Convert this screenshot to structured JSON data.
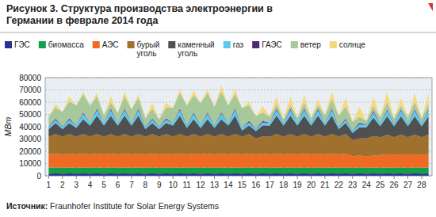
{
  "chart_data": {
    "type": "area",
    "stacked": true,
    "grid": true,
    "legend": "top",
    "title": "Рисунок 3. Структура производства электроэнергии в Германии в феврале 2014 года",
    "y_label": "МВт",
    "source": "Источник: Fraunhofer Institute for Solar Energy Systems",
    "xlim": [
      0.75,
      28.75
    ],
    "xticks": [
      1,
      2,
      3,
      4,
      5,
      6,
      7,
      8,
      9,
      10,
      11,
      12,
      13,
      14,
      15,
      16,
      17,
      18,
      19,
      20,
      21,
      22,
      23,
      24,
      25,
      26,
      27,
      28
    ],
    "ylim": [
      0,
      80000
    ],
    "yticks": [
      0,
      10000,
      20000,
      30000,
      40000,
      50000,
      60000,
      70000,
      80000
    ],
    "x": [
      1,
      1.5,
      2,
      2.5,
      3,
      3.5,
      4,
      4.5,
      5,
      5.5,
      6,
      6.5,
      7,
      7.5,
      8,
      8.5,
      9,
      9.5,
      10,
      10.5,
      11,
      11.5,
      12,
      12.5,
      13,
      13.5,
      14,
      14.5,
      15,
      15.5,
      16,
      16.5,
      17,
      17.5,
      18,
      18.5,
      19,
      19.5,
      20,
      20.5,
      21,
      21.5,
      22,
      22.5,
      23,
      23.5,
      24,
      24.5,
      25,
      25.5,
      26,
      26.5,
      27,
      27.5,
      28,
      28.5
    ],
    "series": [
      {
        "name": "ГЭС",
        "color": "#2e3192",
        "values": [
          1700,
          1900,
          1700,
          1900,
          1700,
          1900,
          1700,
          1900,
          1700,
          1900,
          1700,
          1900,
          1700,
          1900,
          1700,
          1900,
          1700,
          1900,
          1700,
          1900,
          1700,
          1900,
          1700,
          1900,
          1700,
          1900,
          1700,
          1900,
          1700,
          1900,
          1700,
          1900,
          1700,
          1900,
          1700,
          1900,
          1700,
          1900,
          1700,
          1900,
          1700,
          1900,
          1700,
          1900,
          1700,
          1900,
          1700,
          1900,
          1700,
          1900,
          1700,
          1900,
          1700,
          1900,
          1700,
          1900
        ]
      },
      {
        "name": "биомасса",
        "color": "#12a04a",
        "values": [
          4800,
          5000,
          4800,
          5000,
          4800,
          5000,
          4800,
          5000,
          4800,
          5000,
          4800,
          5000,
          4800,
          5000,
          4800,
          5000,
          4800,
          5000,
          4800,
          5000,
          4800,
          5000,
          4800,
          5000,
          4800,
          5000,
          4800,
          5000,
          4800,
          5000,
          4800,
          5000,
          4800,
          5000,
          4800,
          5000,
          4800,
          5000,
          4800,
          5000,
          4800,
          5000,
          4800,
          5000,
          4800,
          5000,
          4800,
          5000,
          4800,
          5000,
          4800,
          5000,
          4800,
          5000,
          4800,
          5000
        ]
      },
      {
        "name": "АЭС",
        "color": "#ef6a23",
        "values": [
          11000,
          11200,
          11000,
          11200,
          11000,
          11200,
          11000,
          11200,
          11000,
          11200,
          11000,
          11200,
          11000,
          11200,
          11000,
          11200,
          11000,
          11200,
          11000,
          11200,
          11000,
          11200,
          11000,
          11200,
          11000,
          11200,
          11000,
          11200,
          11000,
          11200,
          11000,
          11200,
          11000,
          11200,
          11000,
          11200,
          11000,
          11200,
          11000,
          11200,
          11000,
          11200,
          11000,
          11200,
          9500,
          9600,
          9500,
          9600,
          10500,
          10700,
          10500,
          10700,
          10500,
          10700,
          10500,
          10700
        ]
      },
      {
        "name": "бурый уголь",
        "color": "#a0702e",
        "values": [
          14500,
          16000,
          14500,
          16000,
          14500,
          16000,
          14500,
          16000,
          14500,
          16000,
          14500,
          16000,
          14500,
          16000,
          14500,
          16000,
          14500,
          16000,
          14500,
          16000,
          14500,
          16000,
          14500,
          16000,
          14500,
          16000,
          14500,
          16000,
          14500,
          16000,
          13000,
          14000,
          14500,
          16000,
          14500,
          16000,
          14500,
          16000,
          14500,
          16000,
          14500,
          16000,
          14500,
          16000,
          13000,
          14000,
          14500,
          16000,
          14500,
          16000,
          14500,
          16000,
          14500,
          16000,
          14500,
          16000
        ]
      },
      {
        "name": "каменный уголь",
        "color": "#505050",
        "values": [
          6000,
          9000,
          6000,
          9000,
          7000,
          12000,
          9000,
          15000,
          9000,
          15000,
          9000,
          15000,
          9000,
          15000,
          6000,
          9000,
          6000,
          9000,
          9000,
          15000,
          7000,
          12000,
          7000,
          12000,
          7000,
          12000,
          9000,
          15000,
          5000,
          7000,
          6000,
          9000,
          9000,
          15000,
          9000,
          15000,
          9000,
          15000,
          9000,
          15000,
          9000,
          15000,
          6000,
          9000,
          6000,
          9000,
          9000,
          15000,
          9000,
          15000,
          9000,
          15000,
          9000,
          15000,
          9000,
          15000
        ]
      },
      {
        "name": "газ",
        "color": "#5cc8f0",
        "values": [
          1800,
          2500,
          1800,
          2500,
          2000,
          4500,
          2000,
          4500,
          2000,
          4500,
          2000,
          4500,
          2000,
          4500,
          1800,
          2500,
          1800,
          2500,
          2000,
          4500,
          2000,
          4500,
          2000,
          4500,
          2000,
          4500,
          2000,
          4500,
          1800,
          2500,
          1800,
          2500,
          2000,
          4500,
          2000,
          4500,
          2000,
          4500,
          2000,
          4500,
          2000,
          4500,
          1800,
          2500,
          1800,
          2500,
          2000,
          4500,
          2000,
          4500,
          2000,
          4500,
          2000,
          4500,
          2000,
          4500
        ]
      },
      {
        "name": "ГАЭС",
        "color": "#4b2a7a",
        "values": [
          300,
          1000,
          300,
          1000,
          300,
          1000,
          300,
          1000,
          300,
          1000,
          300,
          1000,
          300,
          1000,
          300,
          1000,
          300,
          1000,
          300,
          1000,
          300,
          1000,
          300,
          1000,
          300,
          1000,
          300,
          1000,
          300,
          1000,
          300,
          1000,
          300,
          1000,
          300,
          1000,
          300,
          1000,
          300,
          1000,
          300,
          1000,
          300,
          1000,
          300,
          1000,
          300,
          1000,
          300,
          1000,
          300,
          1000,
          300,
          1000,
          300,
          1000
        ]
      },
      {
        "name": "ветер",
        "color": "#a6c89a",
        "values": [
          8000,
          9000,
          12000,
          14000,
          16000,
          15000,
          14000,
          10000,
          6000,
          5000,
          8000,
          10000,
          11000,
          9000,
          7000,
          8000,
          6000,
          9000,
          12000,
          13000,
          16000,
          14000,
          18000,
          16000,
          15000,
          17000,
          14000,
          12000,
          16000,
          13000,
          10000,
          7000,
          5000,
          4000,
          3000,
          3000,
          4000,
          5000,
          4000,
          3000,
          6000,
          8000,
          9000,
          10000,
          7000,
          5000,
          3000,
          4000,
          5000,
          6000,
          4000,
          3000,
          5000,
          6000,
          4000,
          5000
        ]
      },
      {
        "name": "солнце",
        "color": "#f7d880",
        "values": [
          0,
          3000,
          0,
          4000,
          0,
          2000,
          0,
          3000,
          0,
          5000,
          0,
          4000,
          0,
          3000,
          0,
          5000,
          0,
          4000,
          0,
          3000,
          0,
          4000,
          0,
          3000,
          0,
          5000,
          0,
          4000,
          0,
          3000,
          0,
          5000,
          0,
          6000,
          0,
          7000,
          0,
          6000,
          0,
          5000,
          0,
          6000,
          0,
          7000,
          0,
          8000,
          0,
          7000,
          0,
          8000,
          0,
          6000,
          0,
          7000,
          0,
          8000
        ]
      }
    ]
  }
}
